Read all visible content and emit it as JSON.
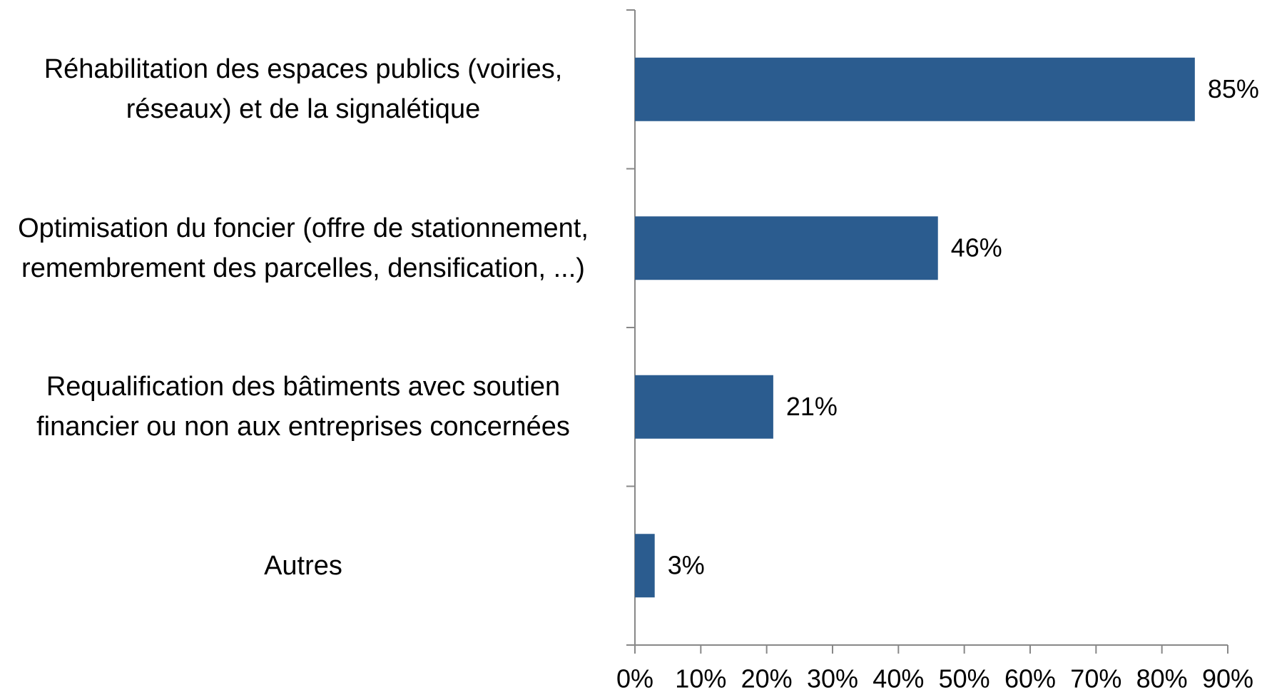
{
  "chart_data": {
    "type": "barh",
    "categories": [
      "Réhabilitation des espaces publics (voiries, réseaux) et de la signalétique",
      "Optimisation du foncier (offre de stationnement, remembrement des parcelles, densification, ...)",
      "Requalification des bâtiments avec soutien financier ou non aux entreprises concernées",
      "Autres"
    ],
    "values": [
      85,
      46,
      21,
      3
    ],
    "value_labels": [
      "85%",
      "46%",
      "21%",
      "3%"
    ],
    "color": "#2b5c8f",
    "xlim": [
      0,
      90
    ],
    "xticks": [
      {
        "value": 0,
        "label": "0%"
      },
      {
        "value": 10,
        "label": "10%"
      },
      {
        "value": 20,
        "label": "20%"
      },
      {
        "value": 30,
        "label": "30%"
      },
      {
        "value": 40,
        "label": "40%"
      },
      {
        "value": 50,
        "label": "50%"
      },
      {
        "value": 60,
        "label": "60%"
      },
      {
        "value": 70,
        "label": "70%"
      },
      {
        "value": 80,
        "label": "80%"
      },
      {
        "value": 90,
        "label": "90%"
      }
    ],
    "grid": false
  }
}
